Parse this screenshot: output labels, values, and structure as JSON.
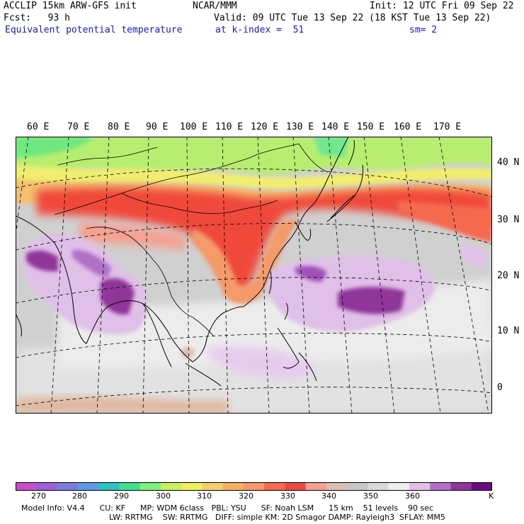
{
  "header": {
    "line1_left": "ACCLIP 15km ARW-GFS init",
    "line1_center": "NCAR/MMM",
    "line1_right": "Init: 12 UTC Fri 09 Sep 22",
    "line2_left": "Fcst:   93 h",
    "line2_right": "Valid: 09 UTC Tue 13 Sep 22 (18 KST Tue 13 Sep 22)",
    "line3_left": "Equivalent potential temperature",
    "line3_center": "at k-index =  51",
    "line3_right": "sm= 2"
  },
  "longitudes": [
    "60 E",
    "70 E",
    "80 E",
    "90 E",
    "100 E",
    "110 E",
    "120 E",
    "130 E",
    "140 E",
    "150 E",
    "160 E",
    "170 E"
  ],
  "latitudes": [
    "40 N",
    "30 N",
    "20 N",
    "10 N",
    "0"
  ],
  "colorbar": {
    "labels": [
      "270",
      "280",
      "290",
      "300",
      "310",
      "320",
      "330",
      "340",
      "350",
      "360",
      "K"
    ],
    "colors": [
      "#c94fc9",
      "#9b5fd6",
      "#7b7be0",
      "#5f9ae8",
      "#2fc0c0",
      "#3fe08f",
      "#7ff07f",
      "#c8f05f",
      "#f0f05f",
      "#f5d070",
      "#f5b060",
      "#f59a6a",
      "#f56a50",
      "#f04840",
      "#f5a090",
      "#dcc0b0",
      "#c8c8c8",
      "#dadada",
      "#efefef",
      "#e0c0e8",
      "#b070c8",
      "#90359a",
      "#6a0a80"
    ]
  },
  "model_info": {
    "line1": "Model Info: V4.4      CU: KF      MP: WDM 6class   PBL: YSU      SF: Noah LSM      15 km    51 levels    90 sec",
    "line2": "LW: RRTMG    SW: RRTMG   DIFF: simple KM: 2D Smagor DAMP: Rayleigh3  SFLAY: MM5"
  }
}
